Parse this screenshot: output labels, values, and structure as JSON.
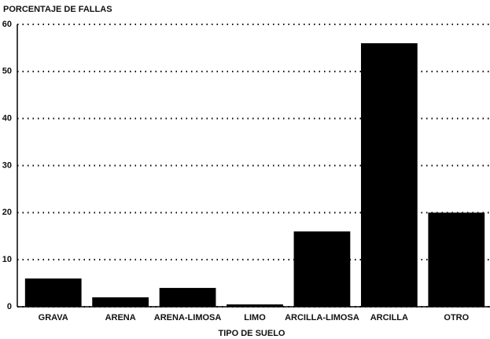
{
  "chart_data": {
    "type": "bar",
    "title": "PORCENTAJE DE FALLAS",
    "x_label": "TIPO DE SUELO",
    "categories": [
      "GRAVA",
      "ARENA",
      "ARENA-LIMOSA",
      "LIMO",
      "ARCILLA-LIMOSA",
      "ARCILLA",
      "OTRO"
    ],
    "values": [
      6,
      2,
      4,
      0.5,
      16,
      56,
      20
    ],
    "color": "#000000",
    "ylim": [
      0,
      60
    ],
    "yticks": [
      0,
      10,
      20,
      30,
      40,
      50,
      60
    ],
    "grid": true
  }
}
